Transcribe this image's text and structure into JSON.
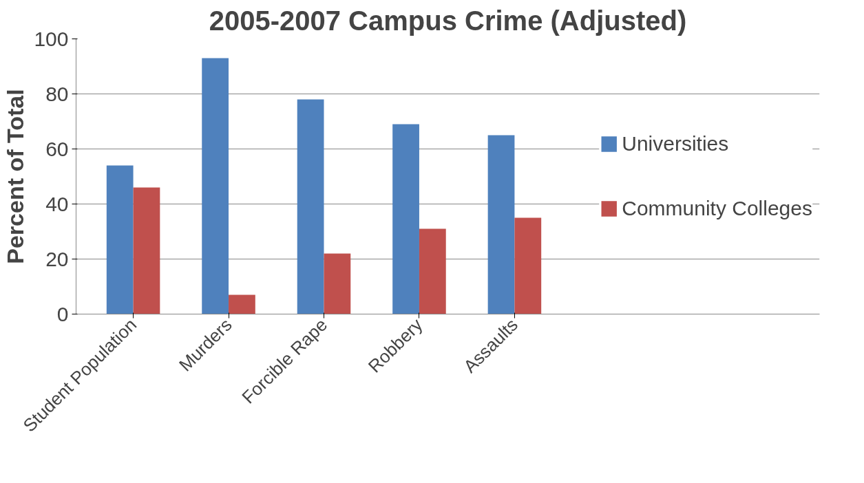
{
  "chart_data": {
    "type": "bar",
    "title": "2005-2007 Campus Crime (Adjusted)",
    "ylabel": "Percent of Total",
    "categories": [
      "Student Population",
      "Murders",
      "Forcible Rape",
      "Robbery",
      "Assaults"
    ],
    "series": [
      {
        "name": "Universities",
        "color": "#4f81bd",
        "values": [
          54,
          93,
          78,
          69,
          65
        ]
      },
      {
        "name": "Community Colleges",
        "color": "#c0504d",
        "values": [
          46,
          7,
          22,
          31,
          35
        ]
      }
    ],
    "ylim": [
      0,
      100
    ],
    "yticks": [
      0,
      20,
      40,
      60,
      80,
      100
    ],
    "grid": "y",
    "legend": "right"
  }
}
